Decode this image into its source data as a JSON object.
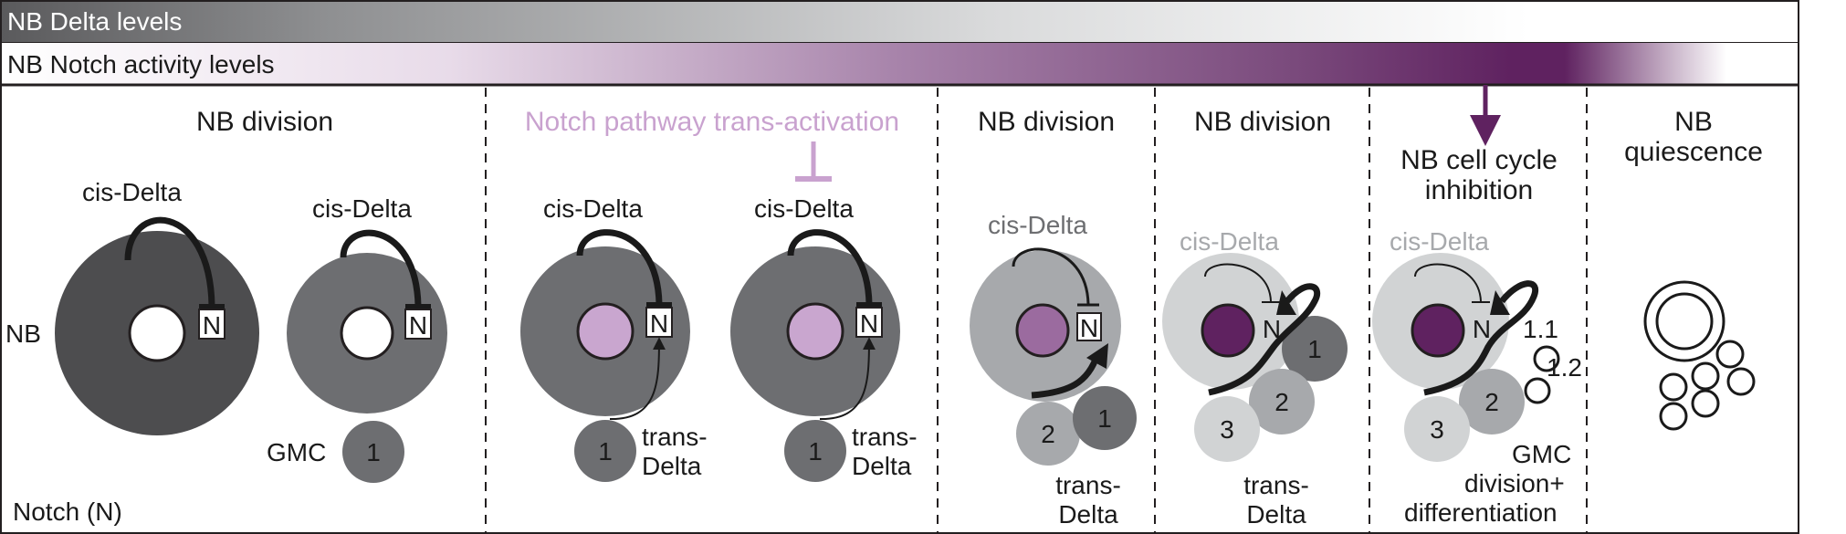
{
  "bars": {
    "delta_label": "NB Delta levels",
    "notch_label": "NB Notch activity levels"
  },
  "legend": {
    "nb_label": "NB",
    "gmc_label": "GMC",
    "notch_note": "Notch (N)"
  },
  "panels": [
    {
      "title": "NB division",
      "cis_label": "cis-Delta",
      "n_label": "N",
      "second_cis_label": "cis-Delta",
      "second_n_label": "N",
      "gmc_number": "1"
    },
    {
      "title": "Notch pathway trans-activation",
      "left_cis": "cis-Delta",
      "left_n": "N",
      "left_gmc": "1",
      "left_trans": [
        "trans-",
        "Delta"
      ],
      "right_cis": "cis-Delta",
      "right_n": "N",
      "right_gmc": "1",
      "right_trans": [
        "trans-",
        "Delta"
      ]
    },
    {
      "title": "NB division",
      "cis_label": "cis-Delta",
      "n_label": "N",
      "gmc_numbers": [
        "2",
        "1"
      ],
      "trans": [
        "trans-",
        "Delta"
      ]
    },
    {
      "title": "NB division",
      "cis_label": "cis-Delta",
      "n_label": "N",
      "gmc_numbers": [
        "1",
        "2",
        "3"
      ],
      "trans": [
        "trans-",
        "Delta"
      ]
    },
    {
      "title": [
        "NB cell cycle",
        "inhibition"
      ],
      "cis_label": "cis-Delta",
      "n_label": "N",
      "gmc_numbers": [
        "2",
        "3"
      ],
      "neuron_labels": [
        "1.1",
        "1.2"
      ],
      "footer": [
        "GMC",
        "division+",
        "differentiation"
      ]
    },
    {
      "title": [
        "NB",
        "quiescence"
      ]
    }
  ],
  "colors": {
    "dark_gray": "#4d4d4f",
    "mid_gray": "#6d6e71",
    "light_gray": "#a7a9ac",
    "pale_gray": "#d1d3d4",
    "lilac": "#c9a6cf",
    "mauve": "#9b6b9f",
    "dark_purple": "#5f2260",
    "pink_text": "#c9a2cf",
    "arrow_purple": "#5f2260"
  }
}
